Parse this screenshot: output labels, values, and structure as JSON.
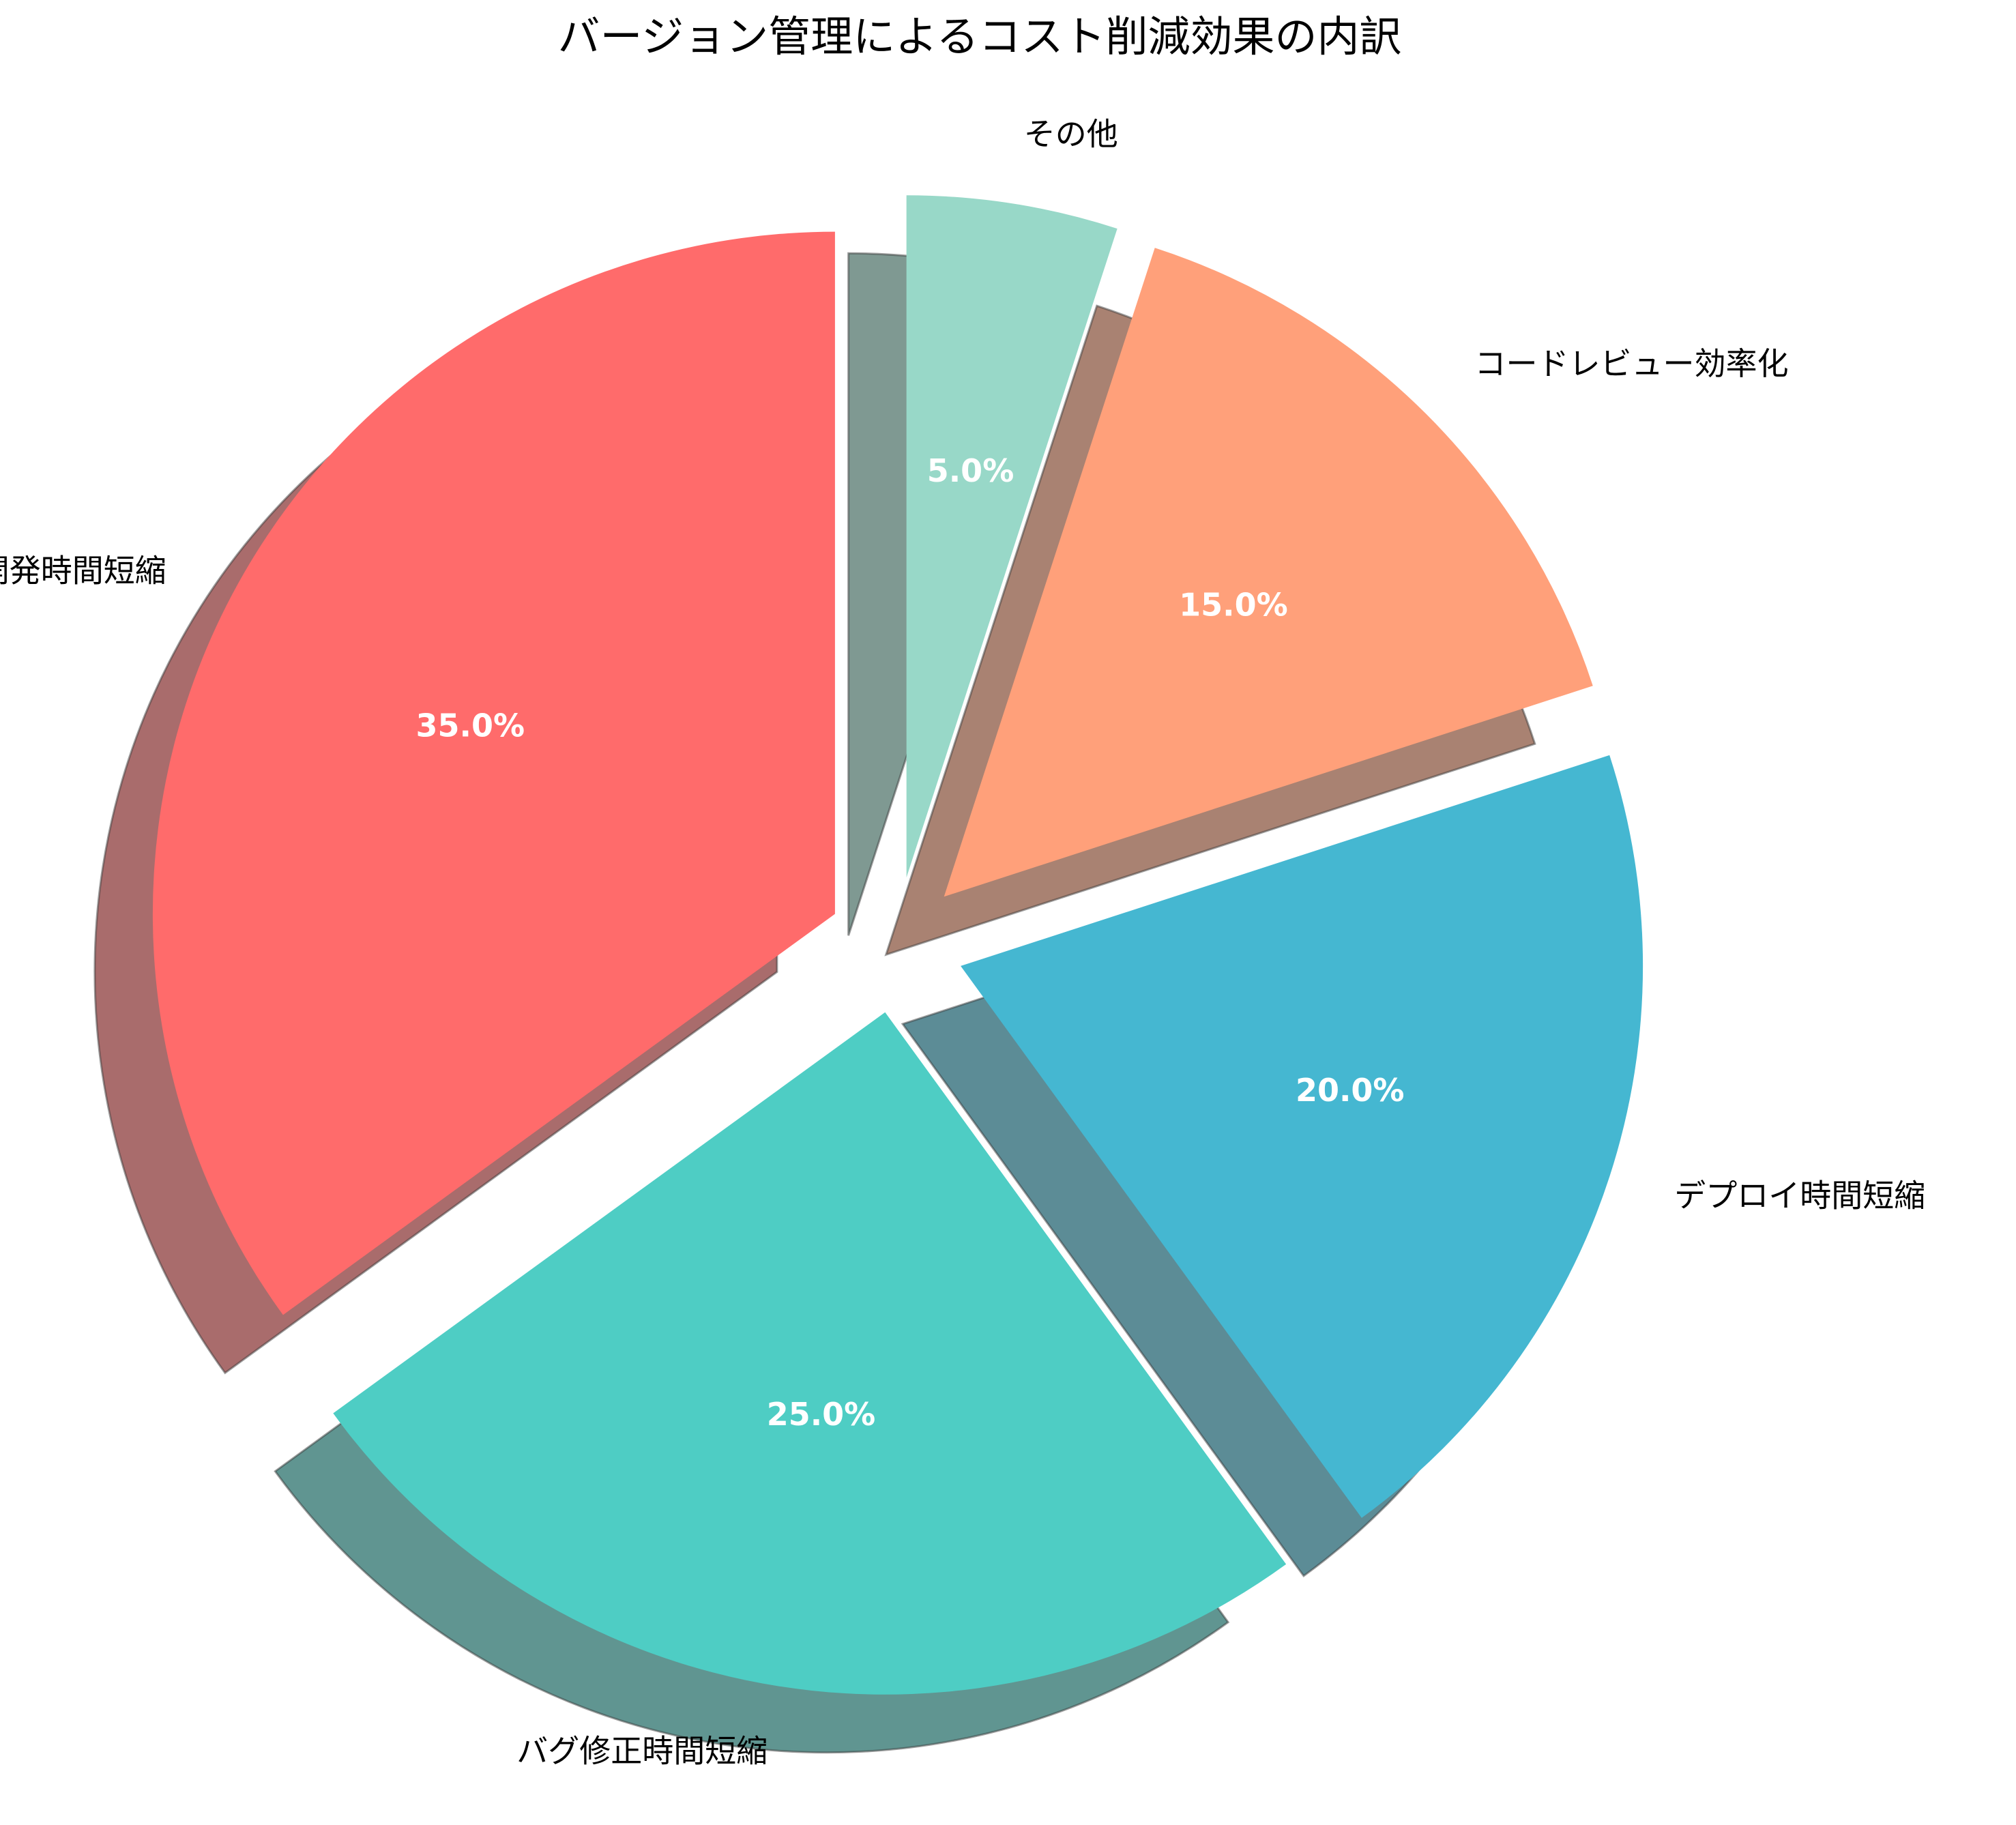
{
  "chart_data": {
    "type": "pie",
    "title": "バージョン管理によるコスト削減効果の内訳",
    "categories": [
      "開発時間短縮",
      "バグ修正時間短縮",
      "デプロイ時間短縮",
      "コードレビュー効率化",
      "その他"
    ],
    "values": [
      35,
      25,
      20,
      15,
      5
    ],
    "percent_labels": [
      "35.0%",
      "25.0%",
      "20.0%",
      "15.0%",
      "5.0%"
    ],
    "colors": [
      "#FF6B6B",
      "#4ECDC4",
      "#45B7D1",
      "#FFA07A",
      "#98D8C8"
    ],
    "start_angle_deg": 90,
    "direction": "counterclockwise",
    "exploded": true,
    "shadow": true,
    "legend": "none"
  }
}
